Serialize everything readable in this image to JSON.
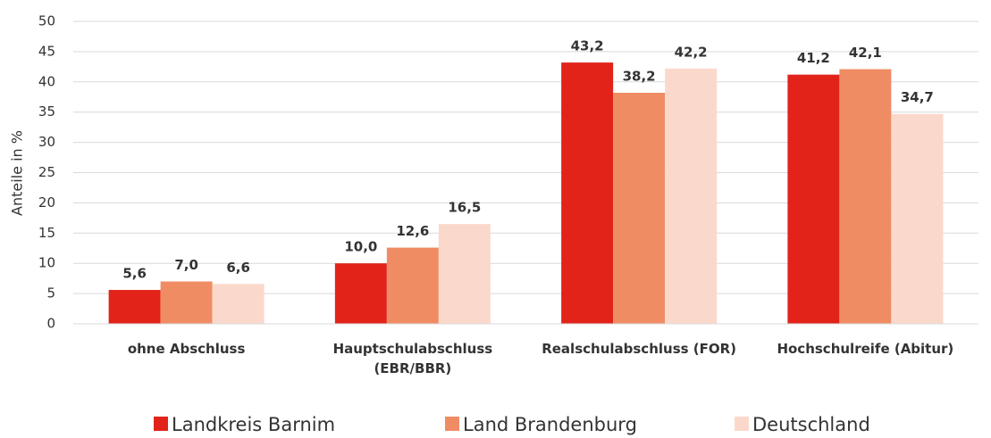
{
  "chart_data": {
    "type": "bar",
    "y_label": "Anteile in %",
    "categories": [
      "ohne Abschluss",
      "Hauptschulabschluss (EBR/BBR)",
      "Realschulabschluss (FOR)",
      "Hochschulreife (Abitur)"
    ],
    "series": [
      {
        "name": "Landkreis Barnim",
        "color": "#e2231a",
        "values": [
          5.6,
          10.0,
          43.2,
          41.2
        ],
        "value_labels": [
          "5,6",
          "10,0",
          "43,2",
          "41,2"
        ]
      },
      {
        "name": "Land Brandenburg",
        "color": "#f08c64",
        "values": [
          7.0,
          12.6,
          38.2,
          42.1
        ],
        "value_labels": [
          "7,0",
          "12,6",
          "38,2",
          "42,1"
        ]
      },
      {
        "name": "Deutschland",
        "color": "#fad9cc",
        "values": [
          6.6,
          16.5,
          42.2,
          34.7
        ],
        "value_labels": [
          "6,6",
          "16,5",
          "42,2",
          "34,7"
        ]
      }
    ],
    "ylim": [
      0,
      50
    ],
    "yticks": [
      0,
      5,
      10,
      15,
      20,
      25,
      30,
      35,
      40,
      45,
      50
    ],
    "grid": true,
    "legend": "bottom"
  }
}
